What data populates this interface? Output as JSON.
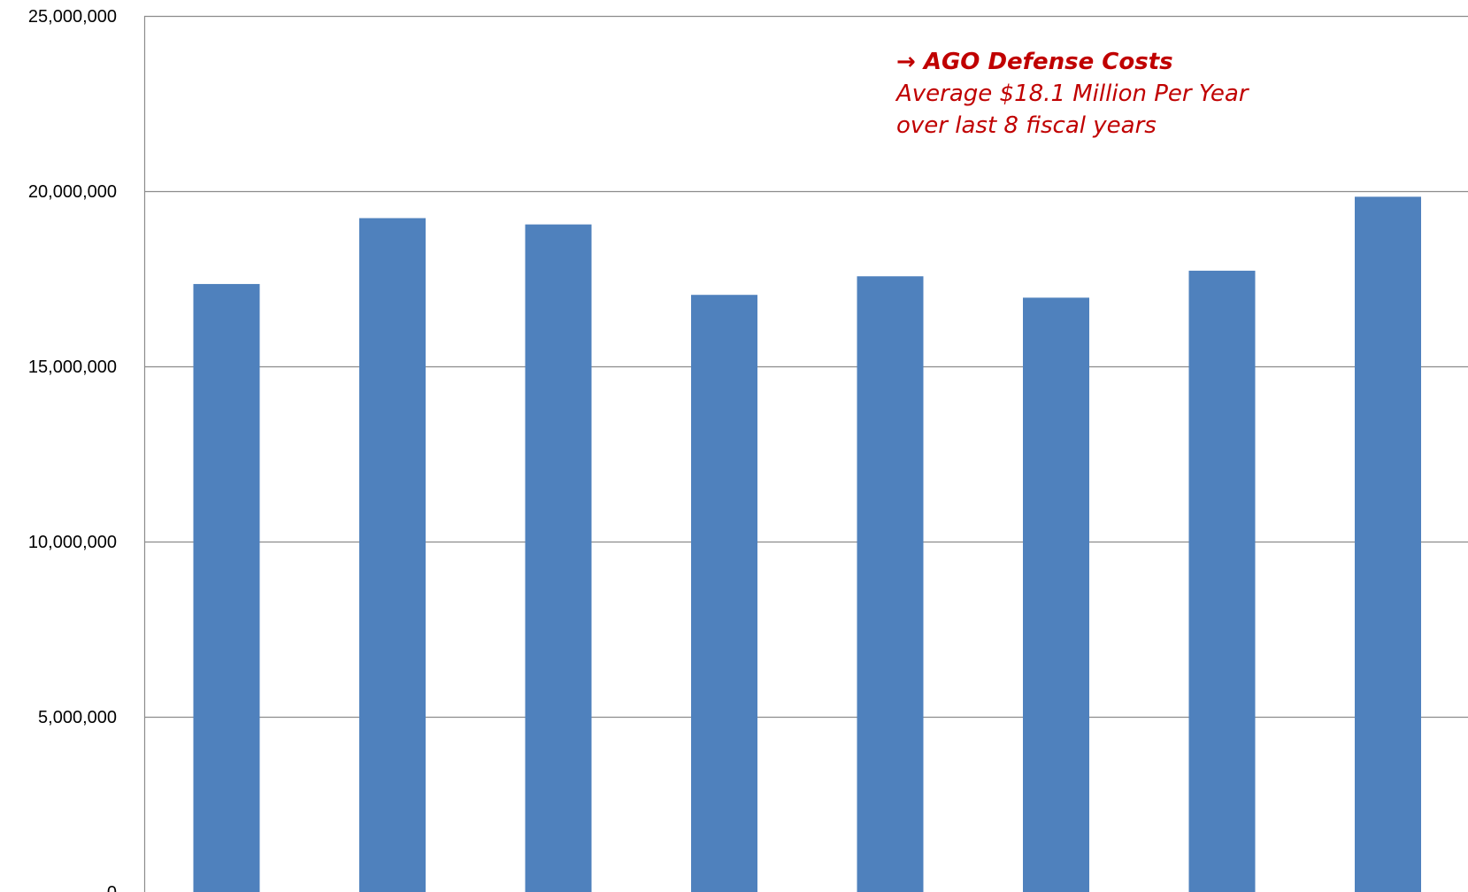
{
  "chart_data": {
    "type": "bar",
    "categories": [
      "",
      "",
      "",
      "",
      "",
      "",
      "",
      ""
    ],
    "values": [
      17350000,
      19230000,
      19050000,
      17040000,
      17570000,
      16960000,
      17730000,
      19840000
    ],
    "title": "",
    "xlabel": "",
    "ylabel": "",
    "ylim": [
      0,
      25000000
    ],
    "yticks": [
      0,
      5000000,
      10000000,
      15000000,
      20000000,
      25000000
    ],
    "ytick_labels": [
      "0",
      "5,000,000",
      "10,000,000",
      "15,000,000",
      "20,000,000",
      "25,000,000"
    ],
    "grid": true,
    "legend": "none",
    "bar_color": "#4f81bd",
    "annotation": {
      "line1": "→ AGO Defense Costs",
      "line2": "Average $18.1 Million Per Year",
      "line3": "over last 8 fiscal years",
      "color": "#c00000"
    }
  }
}
